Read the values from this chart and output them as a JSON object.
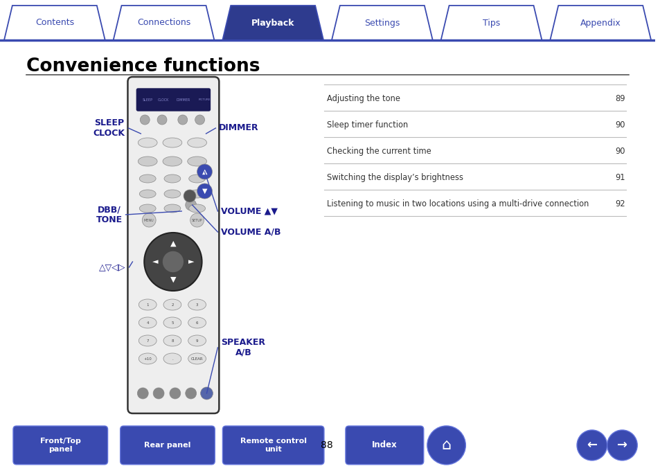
{
  "title": "Convenience functions",
  "bg_color": "#ffffff",
  "tab_items": [
    "Contents",
    "Connections",
    "Playback",
    "Settings",
    "Tips",
    "Appendix"
  ],
  "tab_active": 2,
  "tab_bg_active": "#2e3b8e",
  "tab_bg_inactive": "#ffffff",
  "tab_border": "#3a4ab0",
  "tab_text_active": "#ffffff",
  "tab_text_inactive": "#3a4ab0",
  "table_rows": [
    {
      "label": "Adjusting the tone",
      "page": "89"
    },
    {
      "label": "Sleep timer function",
      "page": "90"
    },
    {
      "label": "Checking the current time",
      "page": "90"
    },
    {
      "label": "Switching the display’s brightness",
      "page": "91"
    },
    {
      "label": "Listening to music in two locations using a multi-drive connection",
      "page": "92"
    }
  ],
  "line_color": "#3a4ab0",
  "label_color": "#1a1a8c",
  "table_line_color": "#bbbbbb",
  "title_color": "#000000",
  "table_text_color": "#333333",
  "button_color": "#3a4ab0",
  "page_number": "88"
}
